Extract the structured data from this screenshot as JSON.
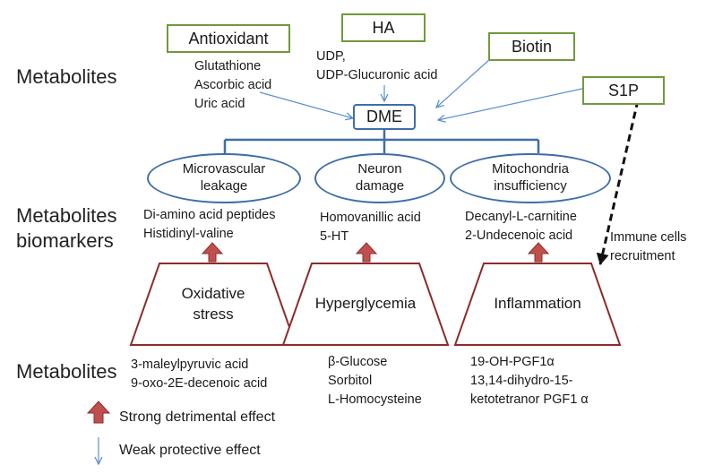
{
  "sections": {
    "top": "Metabolites",
    "middle_line1": "Metabolites",
    "middle_line2": "biomarkers",
    "bottom": "Metabolites"
  },
  "inputs": {
    "antioxidant": {
      "label": "Antioxidant",
      "items": [
        "Glutathione",
        "Ascorbic acid",
        "Uric acid"
      ]
    },
    "ha": {
      "label": "HA",
      "items": [
        "UDP,",
        "UDP-Glucuronic acid"
      ]
    },
    "biotin": {
      "label": "Biotin"
    },
    "s1p": {
      "label": "S1P"
    }
  },
  "center": {
    "label": "DME"
  },
  "outcomes": [
    {
      "line1": "Microvascular",
      "line2": "leakage",
      "biomarkers": [
        "Di-amino acid peptides",
        "Histidinyl-valine"
      ]
    },
    {
      "line1": "Neuron",
      "line2": "damage",
      "biomarkers": [
        "Homovanillic acid",
        "5-HT"
      ]
    },
    {
      "line1": "Mitochondria",
      "line2": "insufficiency",
      "biomarkers": [
        "Decanyl-L-carnitine",
        "2-Undecenoic acid"
      ]
    }
  ],
  "causes": [
    {
      "line1": "Oxidative",
      "line2": "stress",
      "metabolites": [
        "3-maleylpyruvic acid",
        "9-oxo-2E-decenoic acid"
      ]
    },
    {
      "line1": "Hyperglycemia",
      "line2": "",
      "metabolites": [
        "β-Glucose",
        "Sorbitol",
        "L-Homocysteine"
      ]
    },
    {
      "line1": "Inflammation",
      "line2": "",
      "metabolites": [
        "19-OH-PGF1α",
        "13,14-dihydro-15-",
        "ketotetranor PGF1 α"
      ]
    }
  ],
  "immune": {
    "line1": "Immune cells",
    "line2": "recruitment"
  },
  "legend": {
    "strong": "Strong detrimental effect",
    "weak": "Weak protective effect"
  },
  "colors": {
    "green_box": "#6f9a3a",
    "blue": "#3d6ea8",
    "thin_arrow": "#5b8fd1",
    "red_fill": "#c0504d",
    "red_border": "#8c2c2a"
  }
}
